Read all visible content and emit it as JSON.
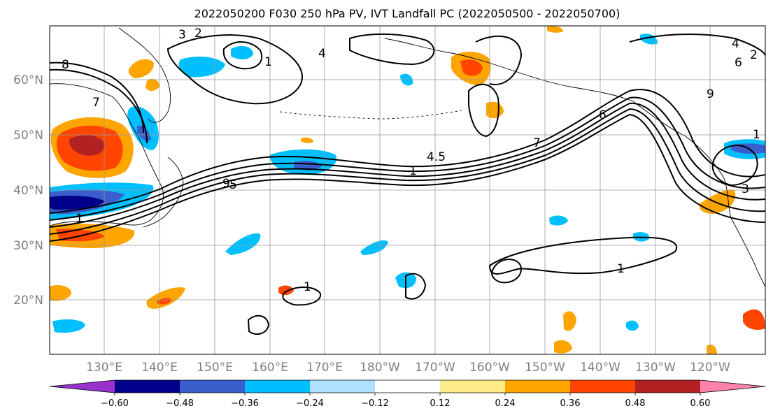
{
  "title": "2022050200 F030 250 hPa PV, IVT Landfall PC (2022050500 - 2022050700)",
  "lat_labels": [
    "60°N",
    "50°N",
    "40°N",
    "30°N",
    "20°N"
  ],
  "lon_labels": [
    "130°E",
    "140°E",
    "150°E",
    "160°E",
    "170°E",
    "180°W",
    "170°W",
    "160°W",
    "150°W",
    "140°W",
    "130°W",
    "120°W"
  ],
  "colorbar": {
    "ticks": [
      "−0.60",
      "−0.48",
      "−0.36",
      "−0.24",
      "−0.12",
      "0.12",
      "0.24",
      "0.36",
      "0.48",
      "0.60"
    ],
    "colors": [
      "#9932cc",
      "#00008b",
      "#3a5fcd",
      "#00bfff",
      "#b0e2ff",
      "#ffffff",
      "#ffec8b",
      "#ffa500",
      "#ff4500",
      "#b22222",
      "#ff82ab"
    ]
  },
  "contour_labels": [
    "8",
    "7",
    "3",
    "2",
    "1",
    "4",
    "6",
    "9",
    "5",
    "4.5",
    "1",
    "7",
    "1",
    "1",
    "1",
    "6",
    "9",
    "4",
    "2",
    "3",
    "1"
  ],
  "colors": {
    "neg_strong": "#00008b",
    "neg_mid": "#3a5fcd",
    "neg_light": "#00bfff",
    "neg_faint": "#b0e2ff",
    "pos_faint": "#ffec8b",
    "pos_light": "#ffa500",
    "pos_mid": "#ff4500",
    "pos_strong": "#b22222"
  }
}
